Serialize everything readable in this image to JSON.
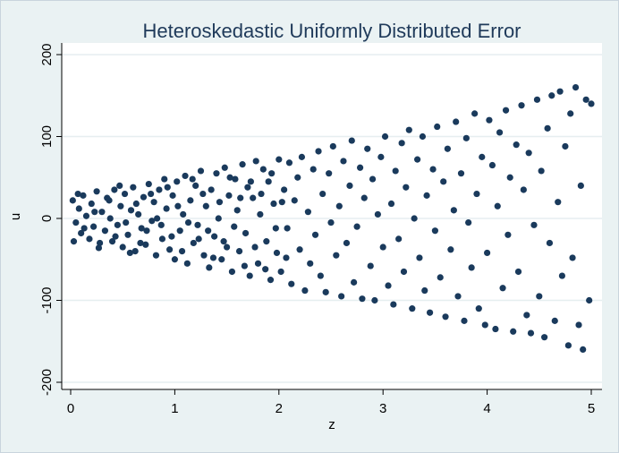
{
  "chart_data": {
    "type": "scatter",
    "title": "Heteroskedastic Uniformly Distributed Error",
    "xlabel": "z",
    "ylabel": "u",
    "xlim": [
      0,
      5
    ],
    "ylim": [
      -200,
      200
    ],
    "x_ticks": [
      "0",
      "1",
      "2",
      "3",
      "4",
      "5"
    ],
    "y_ticks": [
      "-200",
      "-100",
      "0",
      "100",
      "200"
    ],
    "grid": "horizontal",
    "marker_color": "#1a3a5c",
    "series": [
      {
        "points": [
          [
            0.02,
            22
          ],
          [
            0.05,
            -5
          ],
          [
            0.08,
            12
          ],
          [
            0.1,
            -18
          ],
          [
            0.12,
            28
          ],
          [
            0.15,
            3
          ],
          [
            0.18,
            -25
          ],
          [
            0.2,
            18
          ],
          [
            0.22,
            -10
          ],
          [
            0.25,
            33
          ],
          [
            0.28,
            -30
          ],
          [
            0.3,
            8
          ],
          [
            0.33,
            -15
          ],
          [
            0.35,
            25
          ],
          [
            0.38,
            0
          ],
          [
            0.4,
            -28
          ],
          [
            0.42,
            35
          ],
          [
            0.45,
            -8
          ],
          [
            0.48,
            15
          ],
          [
            0.5,
            -35
          ],
          [
            0.52,
            30
          ],
          [
            0.55,
            -20
          ],
          [
            0.58,
            10
          ],
          [
            0.6,
            38
          ],
          [
            0.62,
            -40
          ],
          [
            0.65,
            5
          ],
          [
            0.68,
            -12
          ],
          [
            0.7,
            26
          ],
          [
            0.72,
            -32
          ],
          [
            0.75,
            42
          ],
          [
            0.78,
            -3
          ],
          [
            0.8,
            20
          ],
          [
            0.82,
            -45
          ],
          [
            0.85,
            35
          ],
          [
            0.88,
            -25
          ],
          [
            0.9,
            48
          ],
          [
            0.92,
            12
          ],
          [
            0.95,
            -38
          ],
          [
            0.98,
            28
          ],
          [
            1.0,
            -50
          ],
          [
            1.02,
            45
          ],
          [
            1.05,
            -15
          ],
          [
            1.08,
            5
          ],
          [
            1.1,
            52
          ],
          [
            1.12,
            -55
          ],
          [
            1.15,
            22
          ],
          [
            1.18,
            -30
          ],
          [
            1.2,
            40
          ],
          [
            1.22,
            -8
          ],
          [
            1.25,
            58
          ],
          [
            1.28,
            -45
          ],
          [
            1.3,
            15
          ],
          [
            1.33,
            -60
          ],
          [
            1.35,
            35
          ],
          [
            1.38,
            -22
          ],
          [
            1.4,
            55
          ],
          [
            1.42,
            0
          ],
          [
            1.45,
            -50
          ],
          [
            1.48,
            62
          ],
          [
            1.5,
            -35
          ],
          [
            1.52,
            28
          ],
          [
            1.55,
            -65
          ],
          [
            1.58,
            48
          ],
          [
            1.6,
            10
          ],
          [
            1.62,
            -40
          ],
          [
            1.65,
            66
          ],
          [
            1.68,
            -18
          ],
          [
            1.7,
            38
          ],
          [
            1.72,
            -70
          ],
          [
            1.75,
            25
          ],
          [
            1.78,
            70
          ],
          [
            1.8,
            -55
          ],
          [
            1.82,
            5
          ],
          [
            1.85,
            60
          ],
          [
            1.88,
            -28
          ],
          [
            1.9,
            45
          ],
          [
            1.92,
            -75
          ],
          [
            1.95,
            18
          ],
          [
            1.98,
            -42
          ],
          [
            2.0,
            72
          ],
          [
            2.02,
            -65
          ],
          [
            2.05,
            35
          ],
          [
            2.08,
            -12
          ],
          [
            2.1,
            68
          ],
          [
            2.12,
            -80
          ],
          [
            2.15,
            22
          ],
          [
            2.18,
            50
          ],
          [
            2.2,
            -38
          ],
          [
            2.22,
            75
          ],
          [
            2.25,
            -88
          ],
          [
            2.28,
            8
          ],
          [
            2.3,
            -55
          ],
          [
            2.33,
            60
          ],
          [
            2.35,
            -20
          ],
          [
            2.38,
            82
          ],
          [
            2.4,
            -70
          ],
          [
            2.42,
            30
          ],
          [
            2.45,
            -90
          ],
          [
            2.48,
            55
          ],
          [
            2.5,
            -5
          ],
          [
            2.52,
            88
          ],
          [
            2.55,
            -45
          ],
          [
            2.58,
            15
          ],
          [
            2.6,
            -95
          ],
          [
            2.62,
            70
          ],
          [
            2.65,
            -30
          ],
          [
            2.68,
            40
          ],
          [
            2.7,
            95
          ],
          [
            2.72,
            -78
          ],
          [
            2.75,
            -10
          ],
          [
            2.78,
            62
          ],
          [
            2.8,
            -98
          ],
          [
            2.82,
            25
          ],
          [
            2.85,
            85
          ],
          [
            2.88,
            -58
          ],
          [
            2.9,
            48
          ],
          [
            2.92,
            -100
          ],
          [
            2.95,
            5
          ],
          [
            2.98,
            75
          ],
          [
            3.0,
            -35
          ],
          [
            3.02,
            100
          ],
          [
            3.05,
            -82
          ],
          [
            3.08,
            18
          ],
          [
            3.1,
            -105
          ],
          [
            3.12,
            58
          ],
          [
            3.15,
            -25
          ],
          [
            3.18,
            92
          ],
          [
            3.2,
            -65
          ],
          [
            3.22,
            38
          ],
          [
            3.25,
            108
          ],
          [
            3.28,
            -110
          ],
          [
            3.3,
            0
          ],
          [
            3.33,
            72
          ],
          [
            3.35,
            -48
          ],
          [
            3.38,
            100
          ],
          [
            3.4,
            -88
          ],
          [
            3.42,
            28
          ],
          [
            3.45,
            -115
          ],
          [
            3.48,
            60
          ],
          [
            3.5,
            -15
          ],
          [
            3.52,
            112
          ],
          [
            3.55,
            -72
          ],
          [
            3.58,
            45
          ],
          [
            3.6,
            -120
          ],
          [
            3.62,
            85
          ],
          [
            3.65,
            -38
          ],
          [
            3.68,
            10
          ],
          [
            3.7,
            118
          ],
          [
            3.72,
            -95
          ],
          [
            3.75,
            55
          ],
          [
            3.78,
            -125
          ],
          [
            3.8,
            98
          ],
          [
            3.82,
            -5
          ],
          [
            3.85,
            -60
          ],
          [
            3.88,
            128
          ],
          [
            3.9,
            30
          ],
          [
            3.92,
            -110
          ],
          [
            3.95,
            75
          ],
          [
            3.98,
            -130
          ],
          [
            4.0,
            -42
          ],
          [
            4.02,
            120
          ],
          [
            4.05,
            65
          ],
          [
            4.08,
            -135
          ],
          [
            4.1,
            15
          ],
          [
            4.12,
            105
          ],
          [
            4.15,
            -85
          ],
          [
            4.18,
            132
          ],
          [
            4.2,
            -20
          ],
          [
            4.22,
            50
          ],
          [
            4.25,
            -138
          ],
          [
            4.28,
            90
          ],
          [
            4.3,
            -65
          ],
          [
            4.33,
            138
          ],
          [
            4.35,
            35
          ],
          [
            4.38,
            -118
          ],
          [
            4.4,
            80
          ],
          [
            4.42,
            -140
          ],
          [
            4.45,
            -8
          ],
          [
            4.48,
            145
          ],
          [
            4.5,
            -95
          ],
          [
            4.52,
            58
          ],
          [
            4.55,
            -145
          ],
          [
            4.58,
            110
          ],
          [
            4.6,
            -30
          ],
          [
            4.62,
            150
          ],
          [
            4.65,
            -125
          ],
          [
            4.68,
            20
          ],
          [
            4.7,
            155
          ],
          [
            4.72,
            -70
          ],
          [
            4.75,
            88
          ],
          [
            4.78,
            -155
          ],
          [
            4.8,
            128
          ],
          [
            4.82,
            -48
          ],
          [
            4.85,
            160
          ],
          [
            4.88,
            -130
          ],
          [
            4.9,
            40
          ],
          [
            4.92,
            -160
          ],
          [
            4.95,
            145
          ],
          [
            4.98,
            -100
          ],
          [
            5.0,
            140
          ],
          [
            0.03,
            -28
          ],
          [
            0.07,
            30
          ],
          [
            0.13,
            -12
          ],
          [
            0.23,
            8
          ],
          [
            0.27,
            -36
          ],
          [
            0.37,
            22
          ],
          [
            0.43,
            -22
          ],
          [
            0.47,
            40
          ],
          [
            0.53,
            -5
          ],
          [
            0.57,
            -42
          ],
          [
            0.63,
            18
          ],
          [
            0.67,
            -30
          ],
          [
            0.73,
            -15
          ],
          [
            0.77,
            30
          ],
          [
            0.83,
            0
          ],
          [
            0.87,
            -8
          ],
          [
            0.93,
            38
          ],
          [
            0.97,
            -22
          ],
          [
            1.03,
            15
          ],
          [
            1.07,
            -40
          ],
          [
            1.13,
            -5
          ],
          [
            1.17,
            48
          ],
          [
            1.23,
            -25
          ],
          [
            1.27,
            30
          ],
          [
            1.32,
            -15
          ],
          [
            1.37,
            -48
          ],
          [
            1.43,
            20
          ],
          [
            1.47,
            -28
          ],
          [
            1.53,
            50
          ],
          [
            1.57,
            -10
          ],
          [
            1.63,
            25
          ],
          [
            1.67,
            -58
          ],
          [
            1.73,
            45
          ],
          [
            1.77,
            -35
          ],
          [
            1.83,
            30
          ],
          [
            1.87,
            -62
          ],
          [
            1.93,
            55
          ],
          [
            1.97,
            -12
          ],
          [
            2.03,
            20
          ],
          [
            2.07,
            -48
          ]
        ]
      }
    ]
  }
}
